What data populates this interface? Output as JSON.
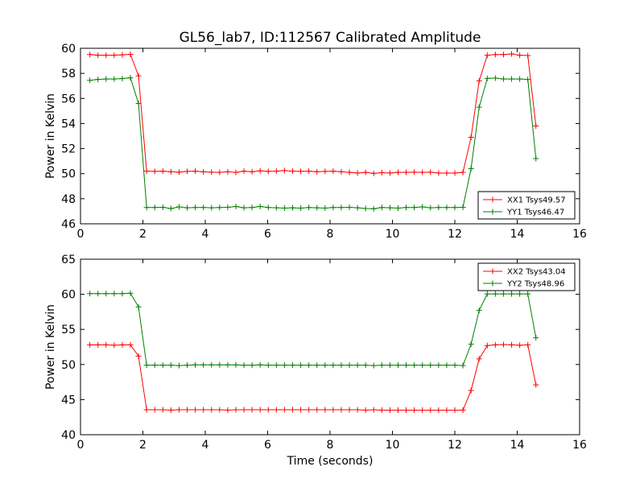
{
  "figure": {
    "title": "GL56_lab7, ID:112567 Calibrated Amplitude",
    "xlabel": "Time (seconds)"
  },
  "chart_data": [
    {
      "type": "line",
      "ylabel": "Power in Kelvin",
      "xlim": [
        0,
        16
      ],
      "ylim": [
        46,
        60
      ],
      "xticks": [
        0,
        2,
        4,
        6,
        8,
        10,
        12,
        14,
        16
      ],
      "yticks": [
        46,
        48,
        50,
        52,
        54,
        56,
        58,
        60
      ],
      "grid": false,
      "legend_position": "lower-right",
      "x": [
        0.3,
        0.56,
        0.82,
        1.08,
        1.34,
        1.6,
        1.86,
        2.12,
        2.38,
        2.64,
        2.9,
        3.16,
        3.42,
        3.68,
        3.94,
        4.2,
        4.46,
        4.72,
        4.98,
        5.24,
        5.5,
        5.76,
        6.02,
        6.28,
        6.54,
        6.8,
        7.06,
        7.32,
        7.58,
        7.84,
        8.1,
        8.36,
        8.62,
        8.88,
        9.14,
        9.4,
        9.66,
        9.92,
        10.18,
        10.44,
        10.7,
        10.96,
        11.22,
        11.48,
        11.74,
        12.0,
        12.26,
        12.52,
        12.78,
        13.04,
        13.3,
        13.56,
        13.82,
        14.08,
        14.34,
        14.6,
        14.86
      ],
      "series": [
        {
          "name": "XX1 Tsys49.57",
          "color": "#ff0000",
          "values": [
            59.5,
            59.45,
            59.45,
            59.45,
            59.48,
            59.52,
            57.8,
            50.2,
            50.18,
            50.2,
            50.15,
            50.12,
            50.18,
            50.2,
            50.15,
            50.12,
            50.1,
            50.15,
            50.1,
            50.2,
            50.15,
            50.22,
            50.18,
            50.2,
            50.25,
            50.2,
            50.18,
            50.2,
            50.15,
            50.18,
            50.2,
            50.15,
            50.1,
            50.05,
            50.1,
            50.02,
            50.08,
            50.05,
            50.1,
            50.1,
            50.12,
            50.1,
            50.12,
            50.05,
            50.05,
            50.05,
            50.1,
            52.9,
            57.4,
            59.45,
            59.5,
            59.5,
            59.55,
            59.45,
            59.42,
            53.8,
            null
          ]
        },
        {
          "name": "YY1 Tsys46.47",
          "color": "#008000",
          "values": [
            57.45,
            57.52,
            57.55,
            57.55,
            57.58,
            57.65,
            55.6,
            47.3,
            47.3,
            47.32,
            47.22,
            47.35,
            47.28,
            47.3,
            47.3,
            47.28,
            47.3,
            47.32,
            47.38,
            47.28,
            47.3,
            47.38,
            47.3,
            47.28,
            47.25,
            47.28,
            47.25,
            47.3,
            47.28,
            47.25,
            47.3,
            47.3,
            47.32,
            47.28,
            47.22,
            47.2,
            47.3,
            47.28,
            47.25,
            47.3,
            47.3,
            47.35,
            47.28,
            47.3,
            47.3,
            47.3,
            47.32,
            50.4,
            55.3,
            57.6,
            57.62,
            57.55,
            57.55,
            57.55,
            57.52,
            51.2,
            null
          ]
        }
      ]
    },
    {
      "type": "line",
      "ylabel": "Power in Kelvin",
      "xlabel": "Time (seconds)",
      "xlim": [
        0,
        16
      ],
      "ylim": [
        40,
        65
      ],
      "xticks": [
        0,
        2,
        4,
        6,
        8,
        10,
        12,
        14,
        16
      ],
      "yticks": [
        40,
        45,
        50,
        55,
        60,
        65
      ],
      "grid": false,
      "legend_position": "upper-right",
      "x": [
        0.3,
        0.56,
        0.82,
        1.08,
        1.34,
        1.6,
        1.86,
        2.12,
        2.38,
        2.64,
        2.9,
        3.16,
        3.42,
        3.68,
        3.94,
        4.2,
        4.46,
        4.72,
        4.98,
        5.24,
        5.5,
        5.76,
        6.02,
        6.28,
        6.54,
        6.8,
        7.06,
        7.32,
        7.58,
        7.84,
        8.1,
        8.36,
        8.62,
        8.88,
        9.14,
        9.4,
        9.66,
        9.92,
        10.18,
        10.44,
        10.7,
        10.96,
        11.22,
        11.48,
        11.74,
        12.0,
        12.26,
        12.52,
        12.78,
        13.04,
        13.3,
        13.56,
        13.82,
        14.08,
        14.34,
        14.6,
        14.86
      ],
      "series": [
        {
          "name": "XX2 Tsys43.04",
          "color": "#ff0000",
          "values": [
            52.8,
            52.8,
            52.8,
            52.75,
            52.8,
            52.8,
            51.2,
            43.55,
            43.55,
            43.55,
            43.5,
            43.55,
            43.55,
            43.55,
            43.55,
            43.55,
            43.55,
            43.5,
            43.55,
            43.55,
            43.55,
            43.55,
            43.55,
            43.55,
            43.55,
            43.55,
            43.55,
            43.55,
            43.55,
            43.55,
            43.55,
            43.55,
            43.55,
            43.55,
            43.5,
            43.55,
            43.5,
            43.5,
            43.5,
            43.5,
            43.5,
            43.5,
            43.5,
            43.5,
            43.5,
            43.5,
            43.5,
            46.3,
            50.8,
            52.7,
            52.8,
            52.85,
            52.8,
            52.75,
            52.8,
            47.1,
            null
          ]
        },
        {
          "name": "YY2 Tsys48.96",
          "color": "#008000",
          "values": [
            60.1,
            60.1,
            60.1,
            60.1,
            60.1,
            60.15,
            58.2,
            49.9,
            49.9,
            49.9,
            49.9,
            49.85,
            49.9,
            49.95,
            49.95,
            49.95,
            49.95,
            49.95,
            49.95,
            49.9,
            49.9,
            49.95,
            49.9,
            49.9,
            49.9,
            49.9,
            49.9,
            49.9,
            49.9,
            49.9,
            49.9,
            49.9,
            49.9,
            49.9,
            49.9,
            49.85,
            49.9,
            49.9,
            49.9,
            49.9,
            49.9,
            49.9,
            49.9,
            49.9,
            49.9,
            49.9,
            49.85,
            52.9,
            57.7,
            60.05,
            60.05,
            60.05,
            60.05,
            60.05,
            60.05,
            53.8,
            null
          ]
        }
      ]
    }
  ]
}
